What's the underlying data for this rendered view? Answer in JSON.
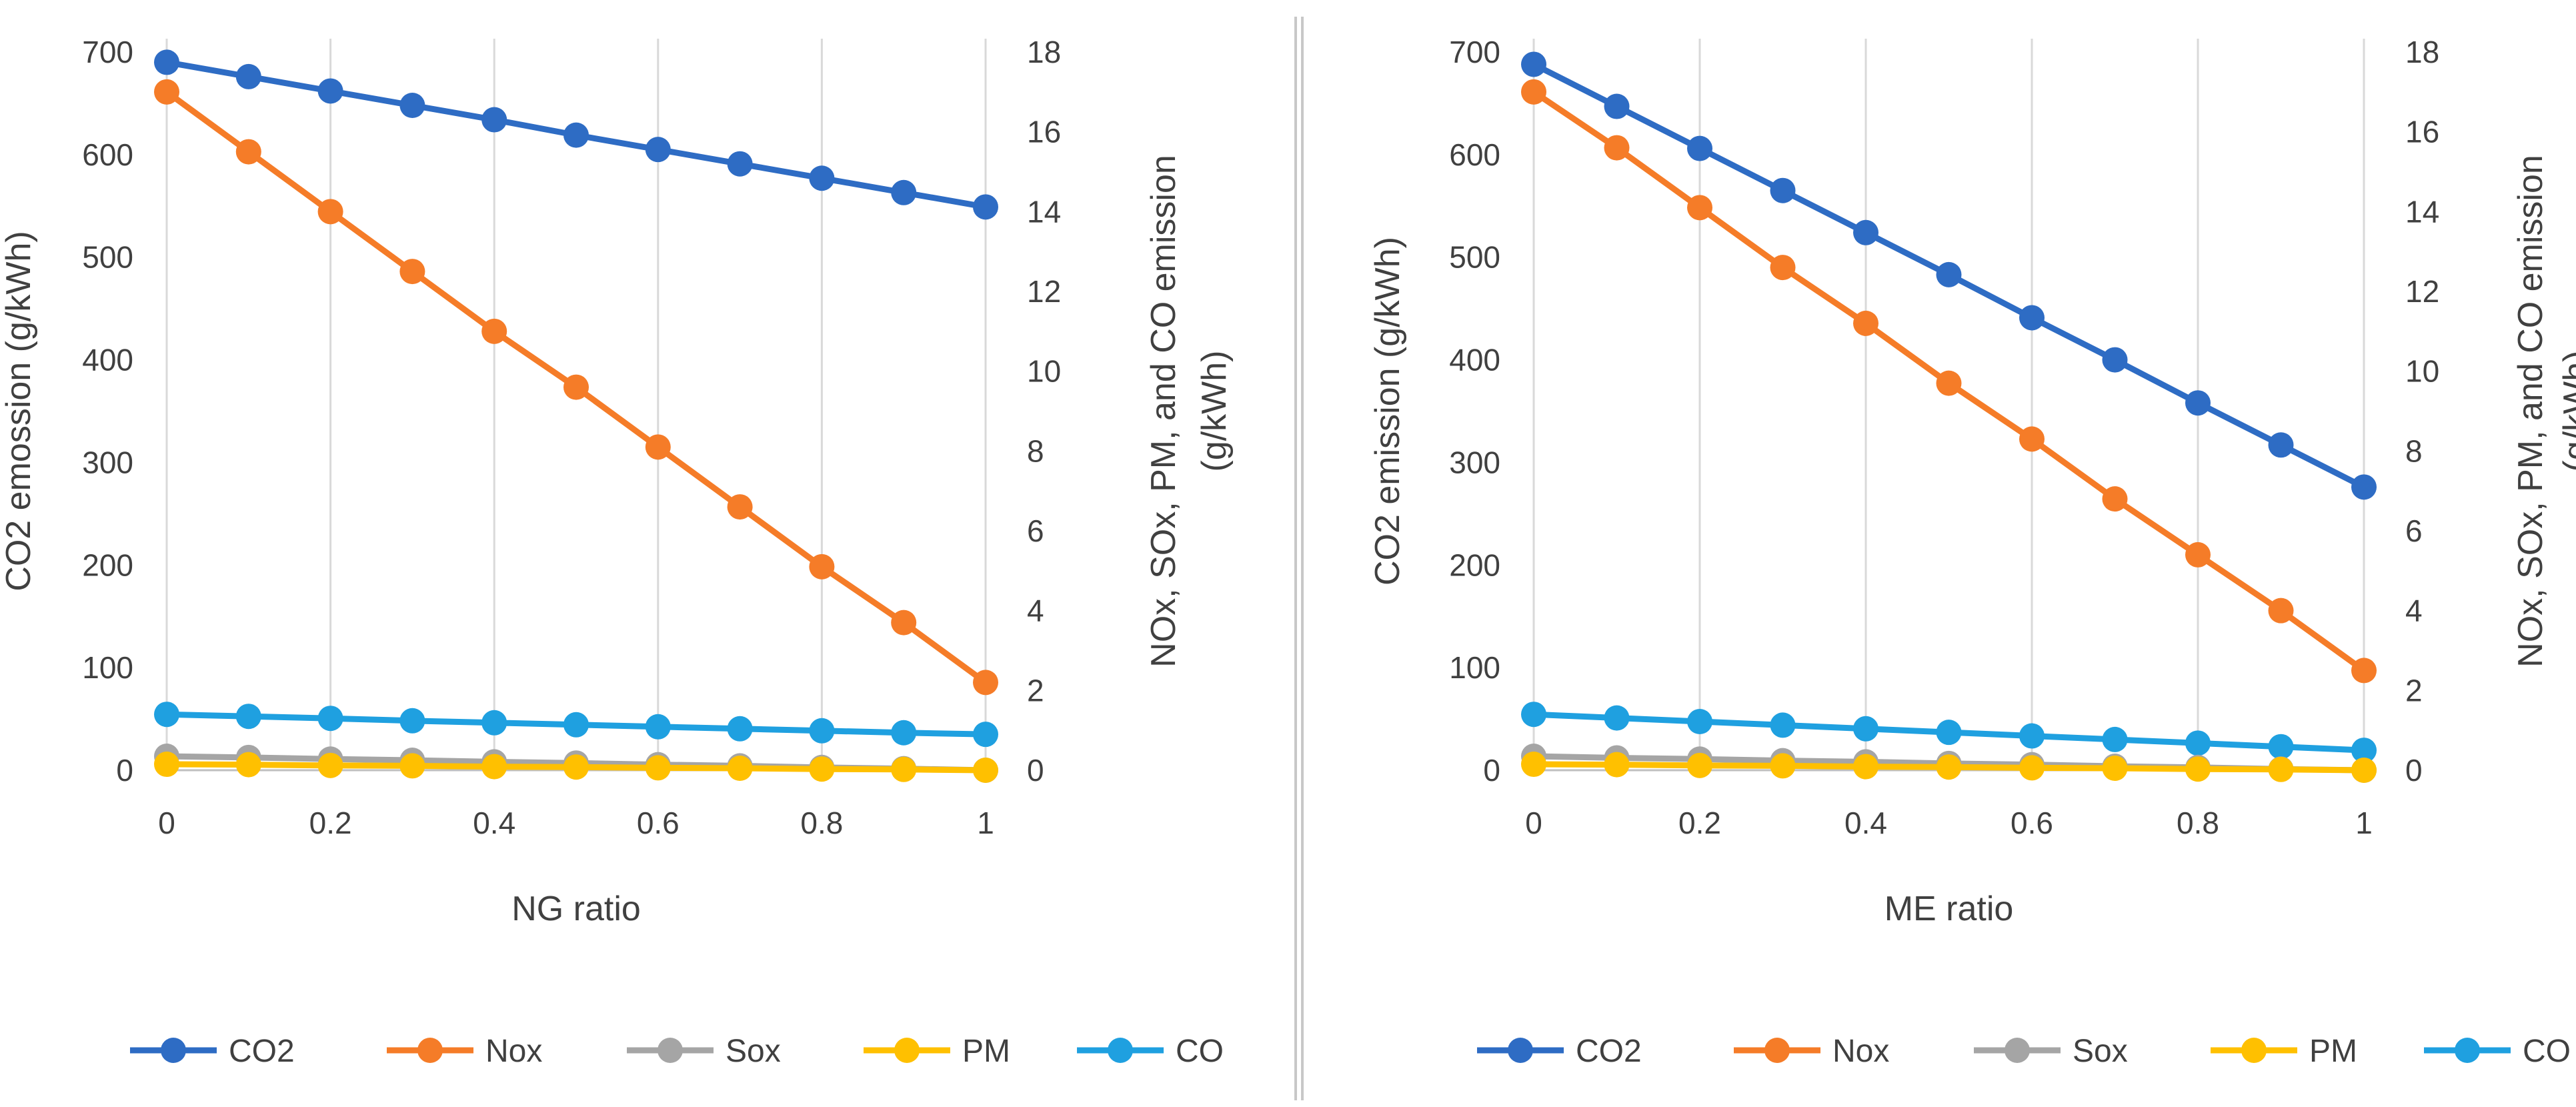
{
  "chart_data": [
    {
      "type": "line",
      "title": "",
      "xlabel": "NG ratio",
      "ylabel_left": "CO2 emossion (g/kWh)",
      "ylabel_right_line1": "NOx, SOx, PM, and CO emission",
      "ylabel_right_line2": "(g/kWh)",
      "ylim_left": [
        0,
        700
      ],
      "ylim_right": [
        0,
        18
      ],
      "x": [
        0,
        0.1,
        0.2,
        0.3,
        0.4,
        0.5,
        0.6,
        0.7,
        0.8,
        0.9,
        1
      ],
      "x_ticks": [
        0,
        0.2,
        0.4,
        0.6,
        0.8,
        1
      ],
      "x_tick_labels": [
        "0",
        "0.2",
        "0.4",
        "0.6",
        "0.8",
        "1"
      ],
      "y_left_ticks": [
        0,
        100,
        200,
        300,
        400,
        500,
        600,
        700
      ],
      "y_left_tick_labels": [
        "0",
        "100",
        "200",
        "300",
        "400",
        "500",
        "600",
        "700"
      ],
      "y_right_ticks": [
        0,
        2,
        4,
        6,
        8,
        10,
        12,
        14,
        16,
        18
      ],
      "y_right_tick_labels": [
        "0",
        "2",
        "4",
        "6",
        "8",
        "10",
        "12",
        "14",
        "16",
        "18"
      ],
      "grid": "vertical",
      "legend_position": "bottom",
      "series": [
        {
          "name": "CO2",
          "axis": "left",
          "color": "#2E6CC4",
          "values": [
            690,
            676,
            662,
            648,
            634,
            619,
            605,
            591,
            577,
            563,
            549
          ]
        },
        {
          "name": "Nox",
          "axis": "right",
          "color": "#F57C28",
          "values": [
            17.0,
            15.5,
            14.0,
            12.5,
            11.0,
            9.6,
            8.1,
            6.6,
            5.1,
            3.7,
            2.2
          ]
        },
        {
          "name": "Sox",
          "axis": "right",
          "color": "#A5A5A5",
          "values": [
            0.35,
            0.32,
            0.28,
            0.25,
            0.21,
            0.18,
            0.14,
            0.11,
            0.07,
            0.04,
            0.0
          ]
        },
        {
          "name": "PM",
          "axis": "right",
          "color": "#FFC000",
          "values": [
            0.15,
            0.14,
            0.12,
            0.11,
            0.09,
            0.08,
            0.06,
            0.05,
            0.03,
            0.02,
            0.0
          ]
        },
        {
          "name": "CO",
          "axis": "right",
          "color": "#1FA0E0",
          "values": [
            1.4,
            1.35,
            1.3,
            1.24,
            1.19,
            1.14,
            1.09,
            1.04,
            0.99,
            0.94,
            0.9
          ]
        }
      ]
    },
    {
      "type": "line",
      "title": "",
      "xlabel": "ME ratio",
      "ylabel_left": "CO2 emission (g/kWh)",
      "ylabel_right_line1": "NOx, SOx, PM, and CO emission",
      "ylabel_right_line2": "(g/kWh)",
      "ylim_left": [
        0,
        700
      ],
      "ylim_right": [
        0,
        18
      ],
      "x": [
        0,
        0.1,
        0.2,
        0.3,
        0.4,
        0.5,
        0.6,
        0.7,
        0.8,
        0.9,
        1
      ],
      "x_ticks": [
        0,
        0.2,
        0.4,
        0.6,
        0.8,
        1
      ],
      "x_tick_labels": [
        "0",
        "0.2",
        "0.4",
        "0.6",
        "0.8",
        "1"
      ],
      "y_left_ticks": [
        0,
        100,
        200,
        300,
        400,
        500,
        600,
        700
      ],
      "y_left_tick_labels": [
        "0",
        "100",
        "200",
        "300",
        "400",
        "500",
        "600",
        "700"
      ],
      "y_right_ticks": [
        0,
        2,
        4,
        6,
        8,
        10,
        12,
        14,
        16,
        18
      ],
      "y_right_tick_labels": [
        "0",
        "2",
        "4",
        "6",
        "8",
        "10",
        "12",
        "14",
        "16",
        "18"
      ],
      "grid": "vertical",
      "legend_position": "bottom",
      "series": [
        {
          "name": "CO2",
          "axis": "left",
          "color": "#2E6CC4",
          "values": [
            688,
            647,
            606,
            565,
            524,
            483,
            441,
            400,
            358,
            317,
            276
          ]
        },
        {
          "name": "Nox",
          "axis": "right",
          "color": "#F57C28",
          "values": [
            17.0,
            15.6,
            14.1,
            12.6,
            11.2,
            9.7,
            8.3,
            6.8,
            5.4,
            4.0,
            2.5
          ]
        },
        {
          "name": "Sox",
          "axis": "right",
          "color": "#A5A5A5",
          "values": [
            0.35,
            0.31,
            0.28,
            0.24,
            0.21,
            0.17,
            0.14,
            0.1,
            0.07,
            0.03,
            0.0
          ]
        },
        {
          "name": "PM",
          "axis": "right",
          "color": "#FFC000",
          "values": [
            0.15,
            0.14,
            0.12,
            0.11,
            0.09,
            0.08,
            0.06,
            0.05,
            0.03,
            0.02,
            0.0
          ]
        },
        {
          "name": "CO",
          "axis": "right",
          "color": "#1FA0E0",
          "values": [
            1.4,
            1.31,
            1.22,
            1.13,
            1.04,
            0.95,
            0.86,
            0.77,
            0.68,
            0.59,
            0.5
          ]
        }
      ]
    }
  ]
}
